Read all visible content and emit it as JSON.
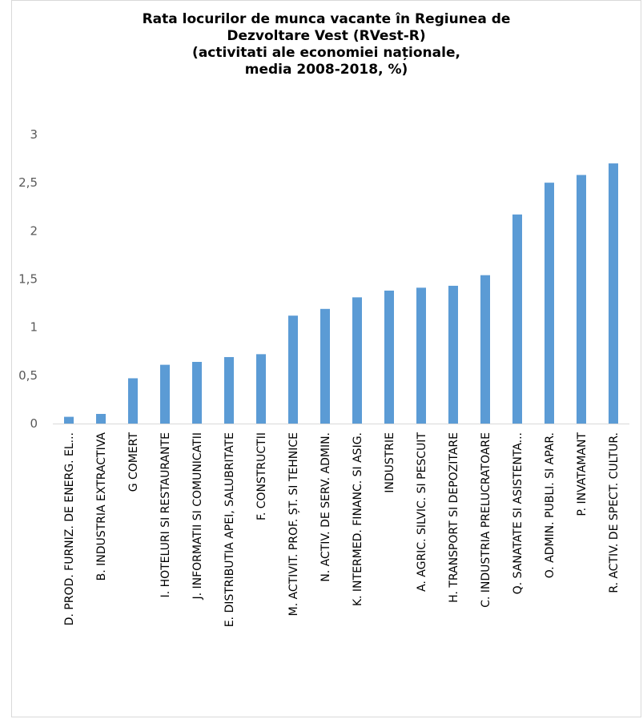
{
  "chart_data": {
    "type": "bar",
    "title_lines": [
      "Rata locurilor de munca vacante în Regiunea de",
      "Dezvoltare Vest (RVest-R)",
      "(activitati ale economiei naționale,",
      "media 2008-2018, %)"
    ],
    "xlabel": "",
    "ylabel": "",
    "ylim": [
      0,
      3
    ],
    "yticks": [
      "0",
      "0,5",
      "1",
      "1,5",
      "2",
      "2,5",
      "3"
    ],
    "grid": false,
    "legend": "none",
    "bar_color": "#5b9bd5",
    "categories": [
      "D. PROD. FURNIZ. DE ENERG. EL...",
      "B. INDUSTRIA EXTRACTIVA",
      "G COMERT",
      "I. HOTELURI SI RESTAURANTE",
      "J. INFORMATII SI COMUNICATII",
      "E. DISTRIBUTIA APEI, SALUBRITATE",
      "F. CONSTRUCTII",
      "M. ACTIVIT. PROF. ȘT. SI TEHNICE",
      "N. ACTIV. DE SERV. ADMIN.",
      "K. INTERMED. FINANC. SI ASIG.",
      "INDUSTRIE",
      "A. AGRIC. SILVIC. SI PESCUIT",
      "H. TRANSPORT SI DEPOZITARE",
      "C. INDUSTRIA PRELUCRATOARE",
      "Q. SANATATE SI ASISTENTA...",
      "O. ADMIN. PUBLI. SI APAR.",
      "P. INVATAMANT",
      "R. ACTIV. DE SPECT. CULTUR."
    ],
    "values": [
      0.07,
      0.1,
      0.47,
      0.61,
      0.64,
      0.69,
      0.72,
      1.12,
      1.19,
      1.31,
      1.38,
      1.41,
      1.43,
      1.54,
      2.17,
      2.5,
      2.58,
      2.7
    ]
  }
}
